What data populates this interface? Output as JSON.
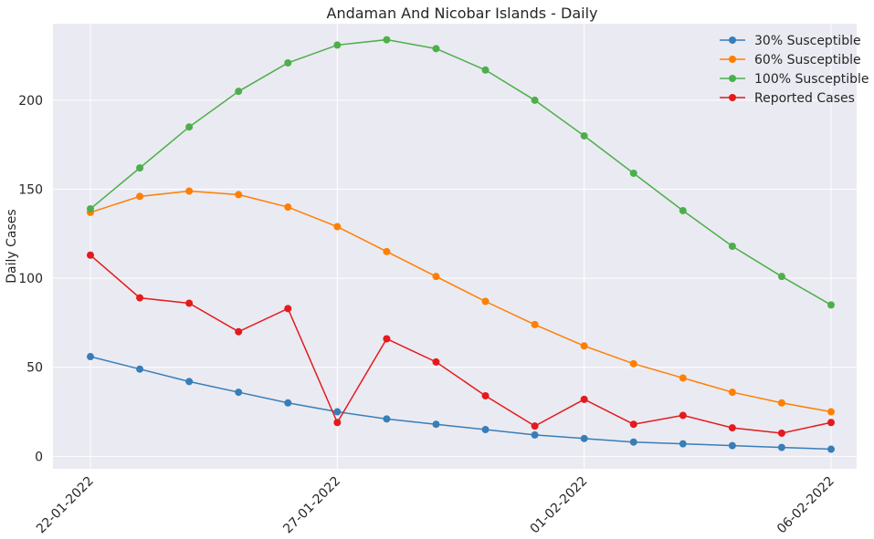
{
  "chart_data": {
    "type": "line",
    "title": "Andaman And Nicobar Islands - Daily",
    "xlabel": "",
    "ylabel": "Daily Cases",
    "x": [
      "22-01-2022",
      "23-01-2022",
      "24-01-2022",
      "25-01-2022",
      "26-01-2022",
      "27-01-2022",
      "28-01-2022",
      "29-01-2022",
      "30-01-2022",
      "31-01-2022",
      "01-02-2022",
      "02-02-2022",
      "03-02-2022",
      "04-02-2022",
      "05-02-2022",
      "06-02-2022"
    ],
    "xticks": [
      "22-01-2022",
      "27-01-2022",
      "01-02-2022",
      "06-02-2022"
    ],
    "yticks": [
      0,
      50,
      100,
      150,
      200
    ],
    "ylim": [
      -7,
      243
    ],
    "grid": true,
    "legend_position": "top-right",
    "series": [
      {
        "name": "30% Susceptible",
        "color": "#377eb8",
        "values": [
          56,
          49,
          42,
          36,
          30,
          25,
          21,
          18,
          15,
          12,
          10,
          8,
          7,
          6,
          5,
          4
        ]
      },
      {
        "name": "60% Susceptible",
        "color": "#ff7f00",
        "values": [
          137,
          146,
          149,
          147,
          140,
          129,
          115,
          101,
          87,
          74,
          62,
          52,
          44,
          36,
          30,
          25
        ]
      },
      {
        "name": "100% Susceptible",
        "color": "#4daf4a",
        "values": [
          139,
          162,
          185,
          205,
          221,
          231,
          234,
          229,
          217,
          200,
          180,
          159,
          138,
          118,
          101,
          85
        ]
      },
      {
        "name": "Reported Cases",
        "color": "#e41a1c",
        "values": [
          113,
          89,
          86,
          70,
          83,
          19,
          66,
          53,
          34,
          17,
          32,
          18,
          23,
          16,
          13,
          19
        ]
      }
    ]
  }
}
